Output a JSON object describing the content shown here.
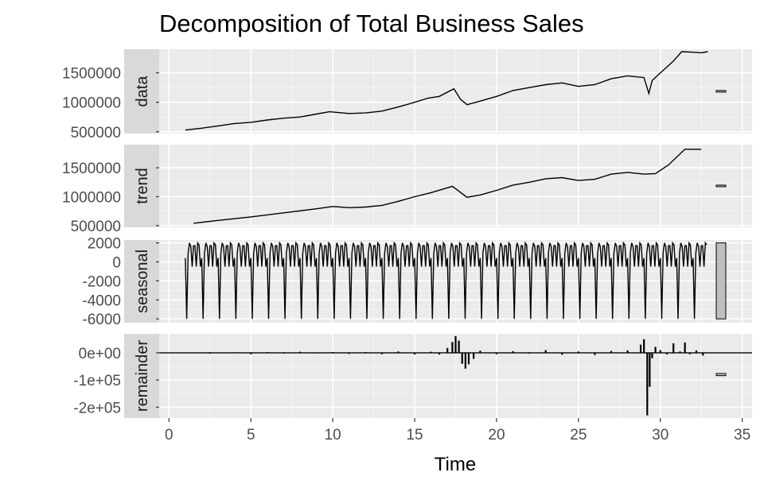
{
  "chart_data": {
    "type": "line",
    "title": "Decomposition of Total Business Sales",
    "xlabel": "Time",
    "xlim": [
      -0.6,
      35.6
    ],
    "x_ticks": [
      0,
      5,
      10,
      15,
      20,
      25,
      30,
      35
    ],
    "x_tick_labels": [
      "0",
      "5",
      "10",
      "15",
      "20",
      "25",
      "30",
      "35"
    ],
    "grid": true,
    "series_range": [
      1,
      32.9
    ],
    "panels": [
      {
        "name": "data",
        "ylim": [
          470000,
          1900000
        ],
        "y_ticks": [
          500000,
          1000000,
          1500000
        ],
        "y_tick_labels": [
          "500000",
          "1000000",
          "1500000"
        ],
        "points": [
          [
            1,
            530000
          ],
          [
            2,
            560000
          ],
          [
            3,
            600000
          ],
          [
            4,
            640000
          ],
          [
            5,
            660000
          ],
          [
            6,
            700000
          ],
          [
            7,
            730000
          ],
          [
            8,
            750000
          ],
          [
            9,
            800000
          ],
          [
            9.8,
            840000
          ],
          [
            11,
            810000
          ],
          [
            12,
            820000
          ],
          [
            13,
            850000
          ],
          [
            14,
            920000
          ],
          [
            15,
            1000000
          ],
          [
            15.8,
            1070000
          ],
          [
            16.5,
            1100000
          ],
          [
            17.4,
            1230000
          ],
          [
            17.8,
            1050000
          ],
          [
            18.2,
            960000
          ],
          [
            19,
            1020000
          ],
          [
            20,
            1100000
          ],
          [
            21,
            1200000
          ],
          [
            22,
            1250000
          ],
          [
            23,
            1300000
          ],
          [
            24,
            1330000
          ],
          [
            25,
            1270000
          ],
          [
            26,
            1300000
          ],
          [
            27,
            1400000
          ],
          [
            28,
            1450000
          ],
          [
            29,
            1420000
          ],
          [
            29.3,
            1150000
          ],
          [
            29.5,
            1370000
          ],
          [
            30,
            1500000
          ],
          [
            30.8,
            1700000
          ],
          [
            31.3,
            1860000
          ],
          [
            32,
            1850000
          ],
          [
            32.5,
            1840000
          ],
          [
            32.9,
            1860000
          ]
        ],
        "range_bar": {
          "low": 1180000,
          "high": 1200000
        }
      },
      {
        "name": "trend",
        "ylim": [
          470000,
          1900000
        ],
        "y_ticks": [
          500000,
          1000000,
          1500000
        ],
        "y_tick_labels": [
          "500000",
          "1000000",
          "1500000"
        ],
        "points": [
          [
            1.5,
            540000
          ],
          [
            3,
            590000
          ],
          [
            5,
            650000
          ],
          [
            7,
            720000
          ],
          [
            9,
            790000
          ],
          [
            10,
            830000
          ],
          [
            11,
            810000
          ],
          [
            12,
            820000
          ],
          [
            13,
            850000
          ],
          [
            14,
            920000
          ],
          [
            15,
            1000000
          ],
          [
            16,
            1070000
          ],
          [
            17.3,
            1180000
          ],
          [
            18.2,
            990000
          ],
          [
            19,
            1030000
          ],
          [
            20,
            1110000
          ],
          [
            21,
            1200000
          ],
          [
            22,
            1250000
          ],
          [
            23,
            1310000
          ],
          [
            24,
            1330000
          ],
          [
            25,
            1280000
          ],
          [
            26,
            1300000
          ],
          [
            27,
            1390000
          ],
          [
            28,
            1420000
          ],
          [
            29,
            1390000
          ],
          [
            29.7,
            1400000
          ],
          [
            30.5,
            1550000
          ],
          [
            31.5,
            1820000
          ],
          [
            32.5,
            1820000
          ]
        ],
        "range_bar": {
          "low": 1180000,
          "high": 1200000
        }
      },
      {
        "name": "seasonal",
        "ylim": [
          -6400,
          2300
        ],
        "y_ticks": [
          2000,
          0,
          -2000,
          -4000,
          -6000
        ],
        "y_tick_labels": [
          "2000",
          "0",
          "-2000",
          "-4000",
          "-6000"
        ],
        "seasonal_pattern": [
          400,
          -6000,
          900,
          2000,
          1600,
          -500,
          1700,
          1700,
          -500,
          2000,
          1800,
          -500
        ],
        "range_bar": {
          "low": -6000,
          "high": 2000
        }
      },
      {
        "name": "remainder",
        "ylim": [
          -240000,
          70000
        ],
        "y_ticks": [
          0,
          -100000,
          -200000
        ],
        "y_tick_labels": [
          "0e+00",
          "-1e+05",
          "-2e+05"
        ],
        "spikes": [
          [
            2.5,
            -3000
          ],
          [
            4,
            2000
          ],
          [
            5,
            -5000
          ],
          [
            6,
            3000
          ],
          [
            7,
            -3000
          ],
          [
            8,
            4000
          ],
          [
            9,
            -2000
          ],
          [
            10,
            3000
          ],
          [
            11,
            -4000
          ],
          [
            12,
            3000
          ],
          [
            13,
            -5000
          ],
          [
            14,
            5000
          ],
          [
            15,
            -6000
          ],
          [
            16,
            4000
          ],
          [
            16.5,
            -6000
          ],
          [
            17,
            18000
          ],
          [
            17.3,
            40000
          ],
          [
            17.5,
            62000
          ],
          [
            17.7,
            45000
          ],
          [
            17.9,
            -40000
          ],
          [
            18.1,
            -58000
          ],
          [
            18.3,
            -42000
          ],
          [
            18.6,
            -22000
          ],
          [
            19,
            8000
          ],
          [
            20,
            -5000
          ],
          [
            21,
            6000
          ],
          [
            22,
            -3000
          ],
          [
            23,
            10000
          ],
          [
            24,
            -7000
          ],
          [
            25,
            5000
          ],
          [
            26,
            -8000
          ],
          [
            27,
            7000
          ],
          [
            28,
            9000
          ],
          [
            28.8,
            30000
          ],
          [
            29,
            50000
          ],
          [
            29.2,
            -230000
          ],
          [
            29.35,
            -125000
          ],
          [
            29.5,
            -20000
          ],
          [
            29.7,
            22000
          ],
          [
            30,
            10000
          ],
          [
            30.4,
            -6000
          ],
          [
            30.8,
            35000
          ],
          [
            31.2,
            5000
          ],
          [
            31.5,
            38000
          ],
          [
            31.8,
            -5000
          ],
          [
            32.2,
            9000
          ],
          [
            32.6,
            -10000
          ]
        ],
        "range_bar": {
          "low": -84000,
          "high": -76000
        }
      }
    ]
  }
}
